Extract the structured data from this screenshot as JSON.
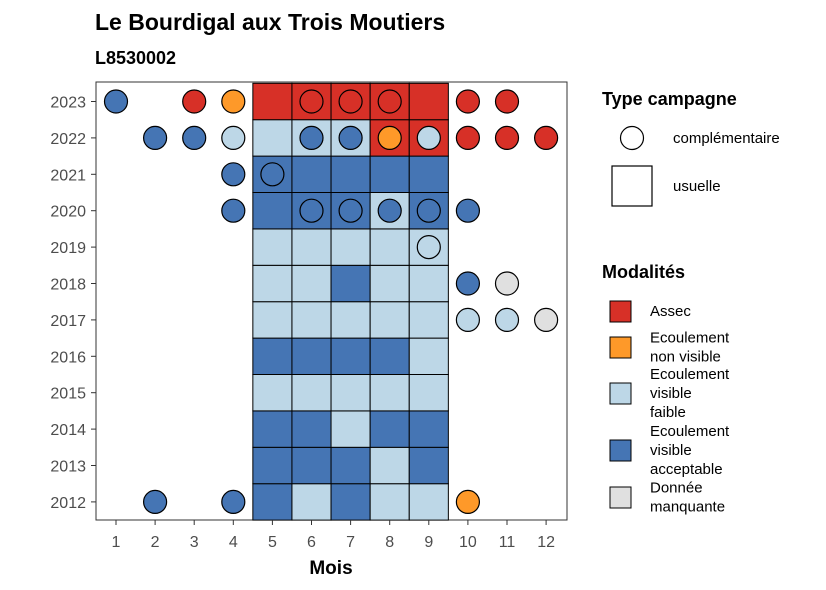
{
  "chart_data": {
    "type": "heatmap",
    "title": "Le Bourdigal aux Trois Moutiers",
    "subtitle": "L8530002",
    "xlabel": "Mois",
    "ylabel": "",
    "x_ticks": [
      1,
      2,
      3,
      4,
      5,
      6,
      7,
      8,
      9,
      10,
      11,
      12
    ],
    "y_ticks": [
      2012,
      2013,
      2014,
      2015,
      2016,
      2017,
      2018,
      2019,
      2020,
      2021,
      2022,
      2023
    ],
    "usual_campaign_months": [
      5,
      6,
      7,
      8,
      9
    ],
    "legend_shape": {
      "title": "Type campagne",
      "items": [
        {
          "key": "complementaire",
          "label": "complémentaire",
          "shape": "circle"
        },
        {
          "key": "usuelle",
          "label": "usuelle",
          "shape": "square"
        }
      ]
    },
    "legend_color": {
      "title": "Modalités",
      "items": [
        {
          "key": "assec",
          "lines": [
            "Assec"
          ],
          "color": "#d73027"
        },
        {
          "key": "ecoulement_non_visible",
          "lines": [
            "Ecoulement",
            "non visible"
          ],
          "color": "#fe9929"
        },
        {
          "key": "ecoulement_faible",
          "lines": [
            "Ecoulement",
            "visible",
            "faible"
          ],
          "color": "#bdd7e7"
        },
        {
          "key": "ecoulement_acceptable",
          "lines": [
            "Ecoulement",
            "visible",
            "acceptable"
          ],
          "color": "#4575b4"
        },
        {
          "key": "donnee_manquante",
          "lines": [
            "Donnée",
            "manquante"
          ],
          "color": "#e0e0e0"
        }
      ]
    },
    "usual": {
      "2023": [
        "assec",
        "assec",
        "assec",
        "assec",
        "assec"
      ],
      "2022": [
        "ecoulement_faible",
        "ecoulement_faible",
        "ecoulement_faible",
        "assec",
        "assec"
      ],
      "2021": [
        "ecoulement_acceptable",
        "ecoulement_acceptable",
        "ecoulement_acceptable",
        "ecoulement_acceptable",
        "ecoulement_acceptable"
      ],
      "2020": [
        "ecoulement_acceptable",
        "ecoulement_acceptable",
        "ecoulement_acceptable",
        "ecoulement_faible",
        "ecoulement_acceptable"
      ],
      "2019": [
        "ecoulement_faible",
        "ecoulement_faible",
        "ecoulement_faible",
        "ecoulement_faible",
        "ecoulement_faible"
      ],
      "2018": [
        "ecoulement_faible",
        "ecoulement_faible",
        "ecoulement_acceptable",
        "ecoulement_faible",
        "ecoulement_faible"
      ],
      "2017": [
        "ecoulement_faible",
        "ecoulement_faible",
        "ecoulement_faible",
        "ecoulement_faible",
        "ecoulement_faible"
      ],
      "2016": [
        "ecoulement_acceptable",
        "ecoulement_acceptable",
        "ecoulement_acceptable",
        "ecoulement_acceptable",
        "ecoulement_faible"
      ],
      "2015": [
        "ecoulement_faible",
        "ecoulement_faible",
        "ecoulement_faible",
        "ecoulement_faible",
        "ecoulement_faible"
      ],
      "2014": [
        "ecoulement_acceptable",
        "ecoulement_acceptable",
        "ecoulement_faible",
        "ecoulement_acceptable",
        "ecoulement_acceptable"
      ],
      "2013": [
        "ecoulement_acceptable",
        "ecoulement_acceptable",
        "ecoulement_acceptable",
        "ecoulement_faible",
        "ecoulement_acceptable"
      ],
      "2012": [
        "ecoulement_acceptable",
        "ecoulement_faible",
        "ecoulement_acceptable",
        "ecoulement_faible",
        "ecoulement_faible"
      ]
    },
    "complementary": [
      {
        "year": 2023,
        "month": 1,
        "modalite": "ecoulement_acceptable"
      },
      {
        "year": 2023,
        "month": 3,
        "modalite": "assec"
      },
      {
        "year": 2023,
        "month": 4,
        "modalite": "ecoulement_non_visible"
      },
      {
        "year": 2023,
        "month": 6,
        "modalite": "assec"
      },
      {
        "year": 2023,
        "month": 7,
        "modalite": "assec"
      },
      {
        "year": 2023,
        "month": 8,
        "modalite": "assec"
      },
      {
        "year": 2023,
        "month": 10,
        "modalite": "assec"
      },
      {
        "year": 2023,
        "month": 11,
        "modalite": "assec"
      },
      {
        "year": 2022,
        "month": 2,
        "modalite": "ecoulement_acceptable"
      },
      {
        "year": 2022,
        "month": 3,
        "modalite": "ecoulement_acceptable"
      },
      {
        "year": 2022,
        "month": 4,
        "modalite": "ecoulement_faible"
      },
      {
        "year": 2022,
        "month": 6,
        "modalite": "ecoulement_acceptable"
      },
      {
        "year": 2022,
        "month": 7,
        "modalite": "ecoulement_acceptable"
      },
      {
        "year": 2022,
        "month": 8,
        "modalite": "ecoulement_non_visible"
      },
      {
        "year": 2022,
        "month": 9,
        "modalite": "ecoulement_faible"
      },
      {
        "year": 2022,
        "month": 10,
        "modalite": "assec"
      },
      {
        "year": 2022,
        "month": 11,
        "modalite": "assec"
      },
      {
        "year": 2022,
        "month": 12,
        "modalite": "assec"
      },
      {
        "year": 2021,
        "month": 4,
        "modalite": "ecoulement_acceptable"
      },
      {
        "year": 2021,
        "month": 5,
        "modalite": "ecoulement_acceptable"
      },
      {
        "year": 2020,
        "month": 4,
        "modalite": "ecoulement_acceptable"
      },
      {
        "year": 2020,
        "month": 6,
        "modalite": "ecoulement_acceptable"
      },
      {
        "year": 2020,
        "month": 7,
        "modalite": "ecoulement_acceptable"
      },
      {
        "year": 2020,
        "month": 8,
        "modalite": "ecoulement_acceptable"
      },
      {
        "year": 2020,
        "month": 9,
        "modalite": "ecoulement_acceptable"
      },
      {
        "year": 2020,
        "month": 10,
        "modalite": "ecoulement_acceptable"
      },
      {
        "year": 2019,
        "month": 9,
        "modalite": "ecoulement_faible"
      },
      {
        "year": 2018,
        "month": 10,
        "modalite": "ecoulement_acceptable"
      },
      {
        "year": 2018,
        "month": 11,
        "modalite": "donnee_manquante"
      },
      {
        "year": 2017,
        "month": 10,
        "modalite": "ecoulement_faible"
      },
      {
        "year": 2017,
        "month": 11,
        "modalite": "ecoulement_faible"
      },
      {
        "year": 2017,
        "month": 12,
        "modalite": "donnee_manquante"
      },
      {
        "year": 2012,
        "month": 2,
        "modalite": "ecoulement_acceptable"
      },
      {
        "year": 2012,
        "month": 4,
        "modalite": "ecoulement_acceptable"
      },
      {
        "year": 2012,
        "month": 10,
        "modalite": "ecoulement_non_visible"
      }
    ]
  }
}
